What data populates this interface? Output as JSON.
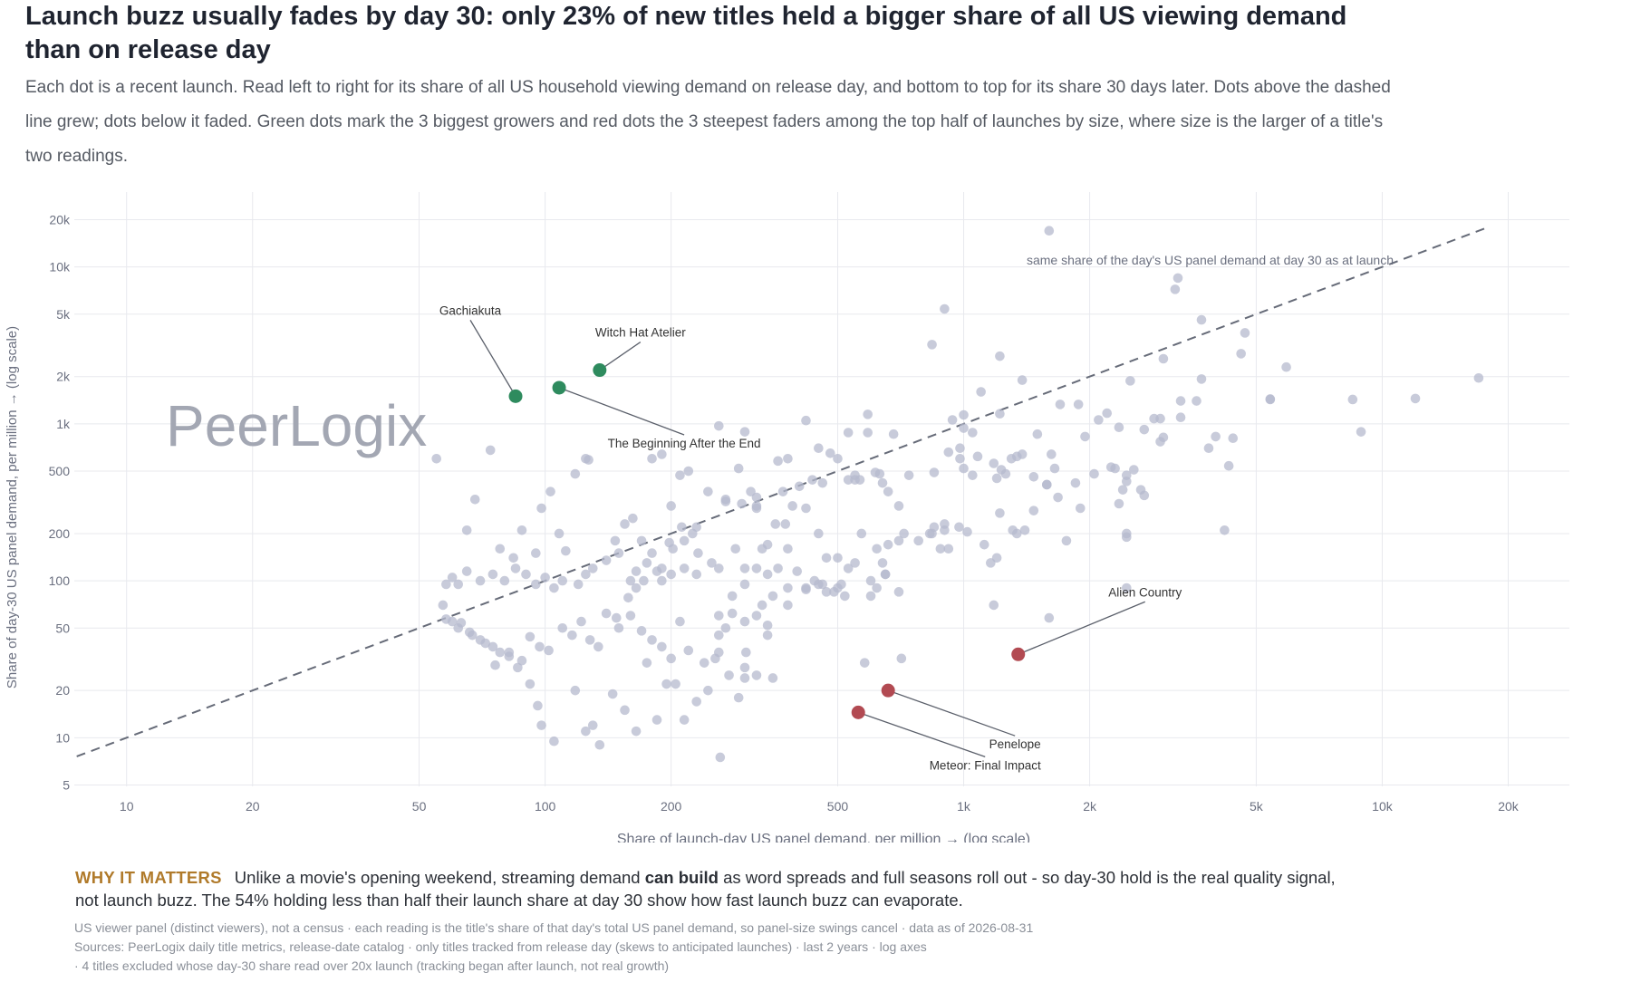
{
  "title": "Launch buzz usually fades by day 30: only 23% of new titles held a bigger share of all US viewing demand than on release day",
  "subtitle": "Each dot is a recent launch. Read left to right for its share of all US household viewing demand on release day, and bottom to top for its share 30 days later. Dots above the dashed line grew; dots below it faded. Green dots mark the 3 biggest growers and red dots the 3 steepest faders among the top half of launches by size, where size is the larger of a title's two readings.",
  "watermark": "PeerLogix",
  "why": {
    "tag": "WHY IT MATTERS",
    "text_before": "Unlike a movie's opening weekend, streaming demand ",
    "bold": "can build",
    "text_after": " as word spreads and full seasons roll out - so day-30 hold is the real quality signal, not launch buzz. The 54% holding less than half their launch share at day 30 show how fast launch buzz can evaporate."
  },
  "footnotes": [
    "US viewer panel (distinct viewers), not a census · each reading is the title's share of that day's total US panel demand, so panel-size swings cancel · data as of 2026-08-31",
    "Sources: PeerLogix daily title metrics, release-date catalog · only titles tracked from release day (skews to anticipated launches) · last 2 years · log axes",
    "· 4 titles excluded whose day-30 share read over 20x launch (tracking began after launch, not real growth)"
  ],
  "colors": {
    "background_dot": "#b6bacd",
    "grower": "#2e8b5e",
    "fader": "#b24a52",
    "reference_line": "#666b78",
    "grid": "#e8e9ee",
    "axis_text": "#6b7080",
    "watermark": "#a3a7b3",
    "why_tag": "#b07a2a"
  },
  "chart_data": {
    "type": "scatter",
    "xlabel": "Share of launch-day US panel demand, per million → (log scale)",
    "ylabel": "Share of day-30 US panel demand, per million → (log scale)",
    "xscale": "log",
    "yscale": "log",
    "xlim": [
      7.5,
      28000
    ],
    "ylim": [
      4.9,
      30000
    ],
    "xticks": [
      10,
      20,
      50,
      100,
      200,
      500,
      1000,
      2000,
      5000,
      10000,
      20000
    ],
    "xtick_labels": [
      "10",
      "20",
      "50",
      "100",
      "200",
      "500",
      "1k",
      "2k",
      "5k",
      "10k",
      "20k"
    ],
    "yticks": [
      5,
      10,
      20,
      50,
      100,
      200,
      500,
      1000,
      2000,
      5000,
      10000,
      20000
    ],
    "ytick_labels": [
      "5",
      "10",
      "20",
      "50",
      "100",
      "200",
      "500",
      "1k",
      "2k",
      "5k",
      "10k",
      "20k"
    ],
    "grid": true,
    "reference_line": {
      "label": "same share of the day's US panel demand at day 30 as at launch",
      "x_range": [
        7.6,
        18000
      ]
    },
    "highlighted": [
      {
        "name": "Gachiakuta",
        "group": "grower",
        "x": 85,
        "y": 1500
      },
      {
        "name": "Witch Hat Atelier",
        "group": "grower",
        "x": 135,
        "y": 2200
      },
      {
        "name": "The Beginning After the End",
        "group": "grower",
        "x": 108,
        "y": 1700
      },
      {
        "name": "Alien Country",
        "group": "fader",
        "x": 1350,
        "y": 34
      },
      {
        "name": "Penelope",
        "group": "fader",
        "x": 660,
        "y": 20
      },
      {
        "name": "Meteor: Final Impact",
        "group": "fader",
        "x": 560,
        "y": 14.5
      }
    ],
    "points": [
      [
        1600,
        17000
      ],
      [
        3250,
        8500
      ],
      [
        3200,
        7200
      ],
      [
        900,
        5400
      ],
      [
        840,
        3200
      ],
      [
        3700,
        4600
      ],
      [
        4700,
        3800
      ],
      [
        4600,
        2800
      ],
      [
        3000,
        2600
      ],
      [
        1220,
        2700
      ],
      [
        5900,
        2300
      ],
      [
        1880,
        1330
      ],
      [
        2500,
        1880
      ],
      [
        1380,
        1900
      ],
      [
        1700,
        1330
      ],
      [
        3700,
        1930
      ],
      [
        3300,
        1400
      ],
      [
        3600,
        1400
      ],
      [
        1100,
        1600
      ],
      [
        1000,
        1140
      ],
      [
        1220,
        1160
      ],
      [
        2850,
        1080
      ],
      [
        2950,
        1080
      ],
      [
        2200,
        1170
      ],
      [
        2350,
        950
      ],
      [
        2100,
        1060
      ],
      [
        2700,
        920
      ],
      [
        3000,
        820
      ],
      [
        4400,
        810
      ],
      [
        2950,
        770
      ],
      [
        940,
        1060
      ],
      [
        1000,
        940
      ],
      [
        1050,
        880
      ],
      [
        590,
        1150
      ],
      [
        530,
        880
      ],
      [
        590,
        880
      ],
      [
        680,
        860
      ],
      [
        1500,
        860
      ],
      [
        1950,
        830
      ],
      [
        3850,
        700
      ],
      [
        920,
        660
      ],
      [
        980,
        700
      ],
      [
        980,
        600
      ],
      [
        1080,
        620
      ],
      [
        1300,
        600
      ],
      [
        1180,
        560
      ],
      [
        1230,
        510
      ],
      [
        1260,
        480
      ],
      [
        1340,
        620
      ],
      [
        1380,
        640
      ],
      [
        1620,
        640
      ],
      [
        1650,
        520
      ],
      [
        2050,
        480
      ],
      [
        2250,
        530
      ],
      [
        2300,
        520
      ],
      [
        2450,
        470
      ],
      [
        2550,
        510
      ],
      [
        2450,
        430
      ],
      [
        2400,
        380
      ],
      [
        2650,
        380
      ],
      [
        1470,
        460
      ],
      [
        1580,
        410
      ],
      [
        1680,
        340
      ],
      [
        2700,
        350
      ],
      [
        1900,
        290
      ],
      [
        2350,
        310
      ],
      [
        1470,
        280
      ],
      [
        1050,
        470
      ],
      [
        1000,
        520
      ],
      [
        850,
        490
      ],
      [
        1200,
        450
      ],
      [
        420,
        1050
      ],
      [
        260,
        970
      ],
      [
        300,
        890
      ],
      [
        360,
        580
      ],
      [
        380,
        600
      ],
      [
        450,
        700
      ],
      [
        480,
        650
      ],
      [
        500,
        600
      ],
      [
        550,
        470
      ],
      [
        615,
        490
      ],
      [
        630,
        480
      ],
      [
        740,
        470
      ],
      [
        640,
        420
      ],
      [
        660,
        370
      ],
      [
        700,
        300
      ],
      [
        550,
        440
      ],
      [
        565,
        440
      ],
      [
        530,
        440
      ],
      [
        370,
        370
      ],
      [
        405,
        400
      ],
      [
        435,
        440
      ],
      [
        460,
        420
      ],
      [
        310,
        370
      ],
      [
        320,
        340
      ],
      [
        320,
        300
      ],
      [
        320,
        290
      ],
      [
        295,
        310
      ],
      [
        290,
        520
      ],
      [
        210,
        470
      ],
      [
        245,
        370
      ],
      [
        270,
        330
      ],
      [
        270,
        320
      ],
      [
        230,
        220
      ],
      [
        200,
        300
      ],
      [
        215,
        180
      ],
      [
        260,
        120
      ],
      [
        285,
        160
      ],
      [
        300,
        120
      ],
      [
        330,
        160
      ],
      [
        340,
        170
      ],
      [
        360,
        120
      ],
      [
        380,
        160
      ],
      [
        355,
        230
      ],
      [
        375,
        230
      ],
      [
        390,
        300
      ],
      [
        420,
        290
      ],
      [
        450,
        200
      ],
      [
        470,
        140
      ],
      [
        500,
        140
      ],
      [
        530,
        120
      ],
      [
        550,
        130
      ],
      [
        570,
        200
      ],
      [
        620,
        160
      ],
      [
        660,
        170
      ],
      [
        640,
        130
      ],
      [
        650,
        110
      ],
      [
        700,
        180
      ],
      [
        780,
        180
      ],
      [
        840,
        200
      ],
      [
        880,
        160
      ],
      [
        920,
        160
      ],
      [
        900,
        210
      ],
      [
        975,
        220
      ],
      [
        1020,
        205
      ],
      [
        1120,
        170
      ],
      [
        1160,
        130
      ],
      [
        1200,
        140
      ],
      [
        1310,
        210
      ],
      [
        1340,
        200
      ],
      [
        1400,
        210
      ],
      [
        1580,
        410
      ],
      [
        1760,
        180
      ],
      [
        1850,
        420
      ],
      [
        2450,
        200
      ],
      [
        2450,
        190
      ],
      [
        2450,
        90
      ],
      [
        4300,
        540
      ],
      [
        4200,
        210
      ],
      [
        5400,
        1430
      ],
      [
        8500,
        1430
      ],
      [
        12000,
        1450
      ],
      [
        8900,
        890
      ],
      [
        17000,
        1960
      ],
      [
        3300,
        1100
      ],
      [
        4000,
        830
      ],
      [
        5400,
        1440
      ],
      [
        1220,
        270
      ],
      [
        1180,
        70
      ],
      [
        1600,
        58
      ],
      [
        830,
        200
      ],
      [
        850,
        220
      ],
      [
        900,
        230
      ],
      [
        720,
        200
      ],
      [
        600,
        100
      ],
      [
        620,
        90
      ],
      [
        650,
        110
      ],
      [
        700,
        85
      ],
      [
        600,
        80
      ],
      [
        580,
        30
      ],
      [
        710,
        32
      ],
      [
        420,
        90
      ],
      [
        440,
        100
      ],
      [
        460,
        95
      ],
      [
        500,
        90
      ],
      [
        520,
        80
      ],
      [
        490,
        85
      ],
      [
        400,
        115
      ],
      [
        380,
        90
      ],
      [
        350,
        80
      ],
      [
        320,
        120
      ],
      [
        330,
        70
      ],
      [
        340,
        110
      ],
      [
        300,
        95
      ],
      [
        280,
        80
      ],
      [
        270,
        50
      ],
      [
        260,
        60
      ],
      [
        250,
        130
      ],
      [
        230,
        110
      ],
      [
        215,
        120
      ],
      [
        200,
        110
      ],
      [
        190,
        100
      ],
      [
        185,
        115
      ],
      [
        175,
        130
      ],
      [
        165,
        115
      ],
      [
        160,
        100
      ],
      [
        150,
        150
      ],
      [
        140,
        135
      ],
      [
        130,
        120
      ],
      [
        125,
        110
      ],
      [
        120,
        95
      ],
      [
        110,
        100
      ],
      [
        105,
        90
      ],
      [
        100,
        105
      ],
      [
        95,
        95
      ],
      [
        90,
        110
      ],
      [
        85,
        120
      ],
      [
        80,
        100
      ],
      [
        75,
        110
      ],
      [
        70,
        100
      ],
      [
        65,
        115
      ],
      [
        60,
        105
      ],
      [
        58,
        95
      ],
      [
        57,
        70
      ],
      [
        60,
        55
      ],
      [
        62,
        50
      ],
      [
        66,
        47
      ],
      [
        70,
        42
      ],
      [
        75,
        38
      ],
      [
        78,
        35
      ],
      [
        82,
        33
      ],
      [
        88,
        31
      ],
      [
        92,
        44
      ],
      [
        97,
        38
      ],
      [
        102,
        36
      ],
      [
        110,
        50
      ],
      [
        116,
        45
      ],
      [
        122,
        55
      ],
      [
        128,
        42
      ],
      [
        134,
        38
      ],
      [
        140,
        62
      ],
      [
        150,
        50
      ],
      [
        160,
        60
      ],
      [
        170,
        48
      ],
      [
        180,
        42
      ],
      [
        190,
        38
      ],
      [
        200,
        32
      ],
      [
        210,
        55
      ],
      [
        220,
        36
      ],
      [
        240,
        30
      ],
      [
        260,
        45
      ],
      [
        280,
        62
      ],
      [
        300,
        55
      ],
      [
        320,
        60
      ],
      [
        340,
        45
      ],
      [
        300,
        24
      ],
      [
        290,
        18
      ],
      [
        275,
        25
      ],
      [
        255,
        32
      ],
      [
        245,
        20
      ],
      [
        230,
        17
      ],
      [
        215,
        13
      ],
      [
        205,
        22
      ],
      [
        195,
        22
      ],
      [
        185,
        13
      ],
      [
        175,
        30
      ],
      [
        165,
        11
      ],
      [
        155,
        15
      ],
      [
        145,
        19
      ],
      [
        135,
        9
      ],
      [
        130,
        12
      ],
      [
        125,
        11
      ],
      [
        118,
        20
      ],
      [
        105,
        9.5
      ],
      [
        98,
        12
      ],
      [
        96,
        16
      ],
      [
        92,
        22
      ],
      [
        86,
        28
      ],
      [
        82,
        35
      ],
      [
        76,
        29
      ],
      [
        72,
        40
      ],
      [
        67,
        45
      ],
      [
        63,
        54
      ],
      [
        58,
        57
      ],
      [
        55,
        600
      ],
      [
        62,
        95
      ],
      [
        65,
        210
      ],
      [
        68,
        330
      ],
      [
        74,
        680
      ],
      [
        78,
        160
      ],
      [
        84,
        140
      ],
      [
        88,
        210
      ],
      [
        95,
        150
      ],
      [
        98,
        290
      ],
      [
        103,
        370
      ],
      [
        108,
        200
      ],
      [
        112,
        155
      ],
      [
        118,
        480
      ],
      [
        125,
        600
      ],
      [
        127,
        590
      ],
      [
        147,
        180
      ],
      [
        155,
        230
      ],
      [
        162,
        250
      ],
      [
        170,
        180
      ],
      [
        180,
        150
      ],
      [
        190,
        120
      ],
      [
        198,
        175
      ],
      [
        202,
        160
      ],
      [
        212,
        220
      ],
      [
        225,
        200
      ],
      [
        232,
        150
      ],
      [
        260,
        35
      ],
      [
        262,
        7.5
      ],
      [
        300,
        28
      ],
      [
        302,
        35
      ],
      [
        320,
        25
      ],
      [
        340,
        52
      ],
      [
        350,
        24
      ],
      [
        380,
        70
      ],
      [
        420,
        88
      ],
      [
        450,
        95
      ],
      [
        470,
        85
      ],
      [
        510,
        95
      ],
      [
        180,
        600
      ],
      [
        190,
        640
      ],
      [
        220,
        500
      ],
      [
        165,
        90
      ],
      [
        172,
        100
      ],
      [
        158,
        78
      ],
      [
        148,
        58
      ]
    ]
  }
}
